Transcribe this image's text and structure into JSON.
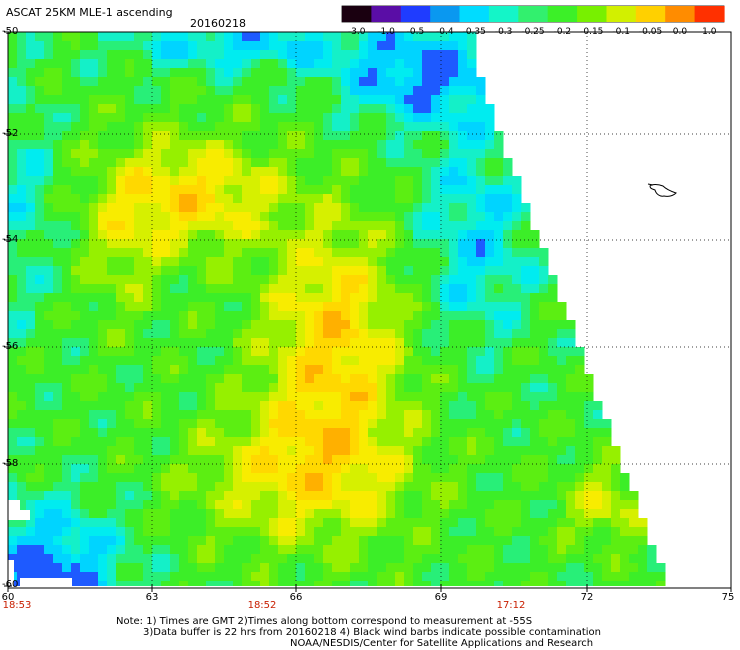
{
  "title": "ASCAT 25KM MLE-1 ascending",
  "date": "20160218",
  "colorbar": {
    "labels": [
      "-3.0",
      "-1.0",
      "-0.5",
      "-0.4",
      "-0.35",
      "-0.3",
      "-0.25",
      "-0.2",
      "-0.15",
      "-0.1",
      "-0.05",
      "0.0",
      "1.0"
    ],
    "colors": [
      "#1a0010",
      "#5a0da6",
      "#1f3cff",
      "#0a98f0",
      "#00dcff",
      "#14f5c8",
      "#32f06e",
      "#3cf028",
      "#78f000",
      "#d2f000",
      "#ffd000",
      "#ff8c00",
      "#ff3000"
    ]
  },
  "x_axis": {
    "ticks": [
      "60",
      "63",
      "66",
      "69",
      "72",
      "75"
    ],
    "range": [
      60,
      75
    ]
  },
  "y_axis": {
    "ticks": [
      "-50",
      "-52",
      "-54",
      "-56",
      "-58",
      "-60"
    ],
    "range": [
      -60,
      -50
    ]
  },
  "pass_times": [
    {
      "lon": 60,
      "text": "18:53"
    },
    {
      "lon": 65.2,
      "text": "18:52"
    },
    {
      "lon": 70.2,
      "text": "17:12"
    }
  ],
  "notes": [
    "Note: 1) Times are GMT 2)Times along bottom correspond to measurement at -55S",
    "3)Data buffer is 22 hrs from 20160218 4) Black wind barbs indicate possible contamination",
    "NOAA/NESDIS/Center for Satellite Applications and Research"
  ]
}
